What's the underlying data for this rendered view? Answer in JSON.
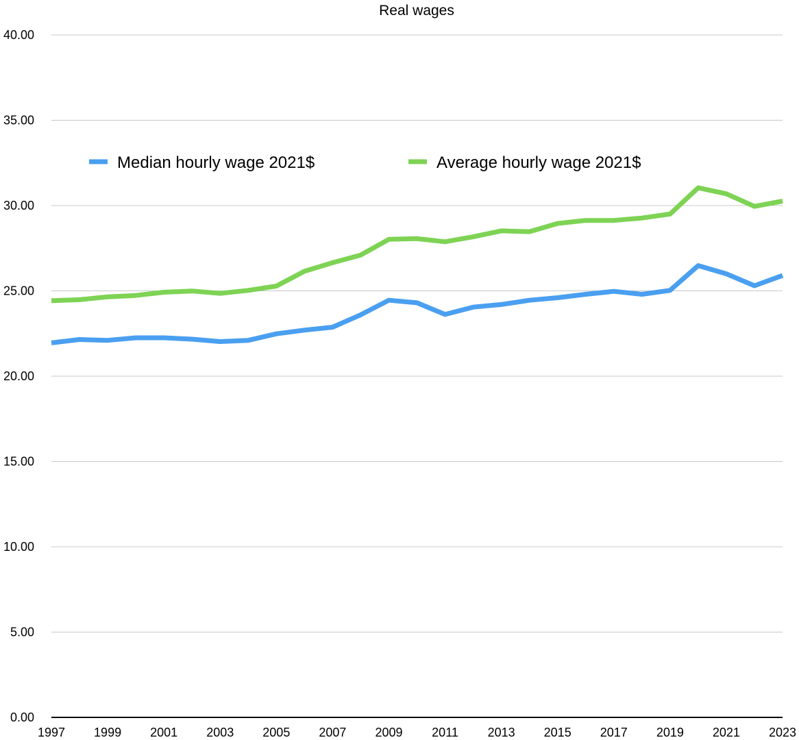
{
  "chart_data": {
    "type": "line",
    "title": "Real wages",
    "xlabel": "",
    "ylabel": "",
    "x": [
      1997,
      1998,
      1999,
      2000,
      2001,
      2002,
      2003,
      2004,
      2005,
      2006,
      2007,
      2008,
      2009,
      2010,
      2011,
      2012,
      2013,
      2014,
      2015,
      2016,
      2017,
      2018,
      2019,
      2020,
      2021,
      2022,
      2023
    ],
    "x_tick_labels": [
      "1997",
      "1999",
      "2001",
      "2003",
      "2005",
      "2007",
      "2009",
      "2011",
      "2013",
      "2015",
      "2017",
      "2019",
      "2021",
      "2023"
    ],
    "ylim": [
      0,
      40
    ],
    "y_tick_labels": [
      "0.00",
      "5.00",
      "10.00",
      "15.00",
      "20.00",
      "25.00",
      "30.00",
      "35.00",
      "40.00"
    ],
    "grid": true,
    "legend_position": "top",
    "series": [
      {
        "name": "Median hourly wage 2021$",
        "color": "#4a9ff0",
        "values": [
          21.95,
          22.15,
          22.1,
          22.25,
          22.25,
          22.17,
          22.03,
          22.1,
          22.48,
          22.7,
          22.87,
          23.6,
          24.45,
          24.3,
          23.62,
          24.05,
          24.2,
          24.45,
          24.6,
          24.8,
          24.97,
          24.8,
          25.03,
          26.48,
          26.0,
          25.3,
          25.9
        ]
      },
      {
        "name": "Average hourly wage 2021$",
        "color": "#7ed354",
        "values": [
          24.42,
          24.48,
          24.65,
          24.73,
          24.92,
          24.99,
          24.85,
          25.03,
          25.28,
          26.15,
          26.65,
          27.1,
          28.02,
          28.06,
          27.88,
          28.17,
          28.52,
          28.47,
          28.95,
          29.13,
          29.13,
          29.27,
          29.5,
          31.04,
          30.69,
          29.95,
          30.26
        ]
      }
    ]
  }
}
